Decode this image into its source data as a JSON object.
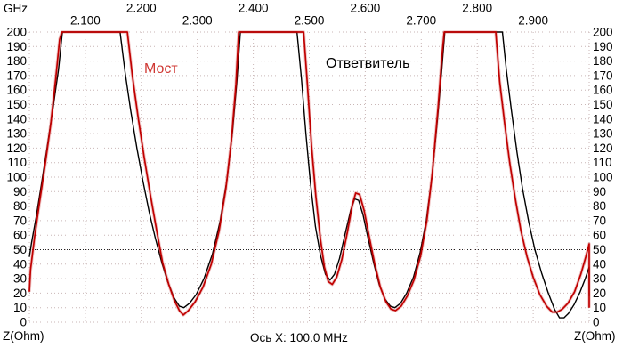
{
  "chart": {
    "x_unit": "GHz",
    "y_unit_left": "Z(Ohm)",
    "y_unit_right": "Z(Ohm)",
    "x_scale_label": "Ось X: 100.0 MHz"
  },
  "colors": {
    "background": "#ffffff",
    "grid": "#c9b6b6",
    "reference_line": "#222222",
    "text": "#000000",
    "bridge_label": "#cf3732"
  },
  "chart_data": {
    "type": "line",
    "title": "",
    "xlabel": "GHz",
    "ylabel": "Z(Ohm)",
    "xlim": [
      2.0,
      3.0
    ],
    "ylim": [
      0,
      200
    ],
    "x_tick_step_ghz": 0.1,
    "y_tick_step": 10,
    "grid": true,
    "legend_position": "none",
    "reference_line_y": 50,
    "x_axis_note": "Ось X: 100.0 MHz",
    "x_tick_labels": [
      "2.100",
      "2.200",
      "2.300",
      "2.400",
      "2.500",
      "2.600",
      "2.700",
      "2.800",
      "2.900"
    ],
    "x_tick_values": [
      2.1,
      2.2,
      2.3,
      2.4,
      2.5,
      2.6,
      2.7,
      2.8,
      2.9
    ],
    "series": [
      {
        "key": "coupler",
        "name": "Ответвитель",
        "color": "#000000",
        "width": 1.4,
        "halo": false,
        "points": [
          [
            2.0,
            45
          ],
          [
            2.004,
            55
          ],
          [
            2.012,
            72
          ],
          [
            2.022,
            96
          ],
          [
            2.032,
            121
          ],
          [
            2.042,
            147
          ],
          [
            2.052,
            174
          ],
          [
            2.059,
            200
          ],
          [
            2.162,
            200
          ],
          [
            2.171,
            172
          ],
          [
            2.181,
            146
          ],
          [
            2.192,
            120
          ],
          [
            2.203,
            97
          ],
          [
            2.214,
            76
          ],
          [
            2.225,
            58
          ],
          [
            2.236,
            42
          ],
          [
            2.247,
            28
          ],
          [
            2.258,
            17
          ],
          [
            2.268,
            11
          ],
          [
            2.276,
            10
          ],
          [
            2.286,
            13
          ],
          [
            2.298,
            19
          ],
          [
            2.312,
            30
          ],
          [
            2.327,
            47
          ],
          [
            2.341,
            70
          ],
          [
            2.353,
            98
          ],
          [
            2.363,
            132
          ],
          [
            2.371,
            168
          ],
          [
            2.377,
            200
          ],
          [
            2.478,
            200
          ],
          [
            2.486,
            168
          ],
          [
            2.494,
            130
          ],
          [
            2.502,
            96
          ],
          [
            2.511,
            66
          ],
          [
            2.52,
            46
          ],
          [
            2.529,
            33
          ],
          [
            2.537,
            29
          ],
          [
            2.545,
            33
          ],
          [
            2.554,
            44
          ],
          [
            2.564,
            61
          ],
          [
            2.574,
            77
          ],
          [
            2.581,
            85
          ],
          [
            2.588,
            84
          ],
          [
            2.596,
            74
          ],
          [
            2.605,
            58
          ],
          [
            2.615,
            41
          ],
          [
            2.625,
            26
          ],
          [
            2.635,
            16
          ],
          [
            2.645,
            11
          ],
          [
            2.653,
            10
          ],
          [
            2.663,
            13
          ],
          [
            2.674,
            20
          ],
          [
            2.686,
            31
          ],
          [
            2.698,
            48
          ],
          [
            2.709,
            70
          ],
          [
            2.719,
            100
          ],
          [
            2.729,
            140
          ],
          [
            2.737,
            176
          ],
          [
            2.742,
            200
          ],
          [
            2.845,
            200
          ],
          [
            2.852,
            174
          ],
          [
            2.861,
            146
          ],
          [
            2.871,
            117
          ],
          [
            2.881,
            92
          ],
          [
            2.892,
            69
          ],
          [
            2.903,
            50
          ],
          [
            2.915,
            34
          ],
          [
            2.927,
            20
          ],
          [
            2.938,
            9
          ],
          [
            2.947,
            3
          ],
          [
            2.955,
            3
          ],
          [
            2.963,
            6
          ],
          [
            2.973,
            12
          ],
          [
            2.984,
            21
          ],
          [
            2.993,
            30
          ],
          [
            3.0,
            38
          ],
          [
            3.0,
            18
          ]
        ]
      },
      {
        "key": "bridge",
        "name": "Мост",
        "color": "#c00000",
        "width": 1.7,
        "halo": true,
        "points": [
          [
            2.0,
            21
          ],
          [
            2.002,
            36
          ],
          [
            2.009,
            58
          ],
          [
            2.018,
            82
          ],
          [
            2.028,
            108
          ],
          [
            2.038,
            136
          ],
          [
            2.047,
            168
          ],
          [
            2.054,
            195
          ],
          [
            2.058,
            200
          ],
          [
            2.175,
            200
          ],
          [
            2.184,
            170
          ],
          [
            2.194,
            142
          ],
          [
            2.205,
            114
          ],
          [
            2.216,
            88
          ],
          [
            2.227,
            64
          ],
          [
            2.238,
            41
          ],
          [
            2.249,
            26
          ],
          [
            2.259,
            15
          ],
          [
            2.268,
            8
          ],
          [
            2.275,
            5
          ],
          [
            2.284,
            8
          ],
          [
            2.296,
            14
          ],
          [
            2.31,
            24
          ],
          [
            2.325,
            40
          ],
          [
            2.339,
            63
          ],
          [
            2.351,
            92
          ],
          [
            2.361,
            126
          ],
          [
            2.369,
            164
          ],
          [
            2.374,
            200
          ],
          [
            2.49,
            200
          ],
          [
            2.497,
            162
          ],
          [
            2.504,
            122
          ],
          [
            2.512,
            86
          ],
          [
            2.52,
            57
          ],
          [
            2.527,
            38
          ],
          [
            2.534,
            28
          ],
          [
            2.541,
            26
          ],
          [
            2.549,
            31
          ],
          [
            2.558,
            43
          ],
          [
            2.568,
            62
          ],
          [
            2.577,
            81
          ],
          [
            2.583,
            89
          ],
          [
            2.59,
            88
          ],
          [
            2.598,
            77
          ],
          [
            2.607,
            59
          ],
          [
            2.617,
            40
          ],
          [
            2.627,
            24
          ],
          [
            2.637,
            14
          ],
          [
            2.646,
            9
          ],
          [
            2.654,
            8
          ],
          [
            2.664,
            11
          ],
          [
            2.675,
            18
          ],
          [
            2.687,
            29
          ],
          [
            2.699,
            46
          ],
          [
            2.71,
            70
          ],
          [
            2.72,
            104
          ],
          [
            2.73,
            148
          ],
          [
            2.737,
            184
          ],
          [
            2.741,
            200
          ],
          [
            2.833,
            200
          ],
          [
            2.84,
            166
          ],
          [
            2.849,
            137
          ],
          [
            2.858,
            110
          ],
          [
            2.868,
            85
          ],
          [
            2.878,
            63
          ],
          [
            2.889,
            45
          ],
          [
            2.9,
            31
          ],
          [
            2.912,
            19
          ],
          [
            2.924,
            11
          ],
          [
            2.934,
            7
          ],
          [
            2.943,
            7
          ],
          [
            2.952,
            9
          ],
          [
            2.962,
            13
          ],
          [
            2.974,
            21
          ],
          [
            2.985,
            33
          ],
          [
            2.994,
            45
          ],
          [
            3.0,
            54
          ],
          [
            3.0,
            10
          ]
        ]
      }
    ]
  }
}
